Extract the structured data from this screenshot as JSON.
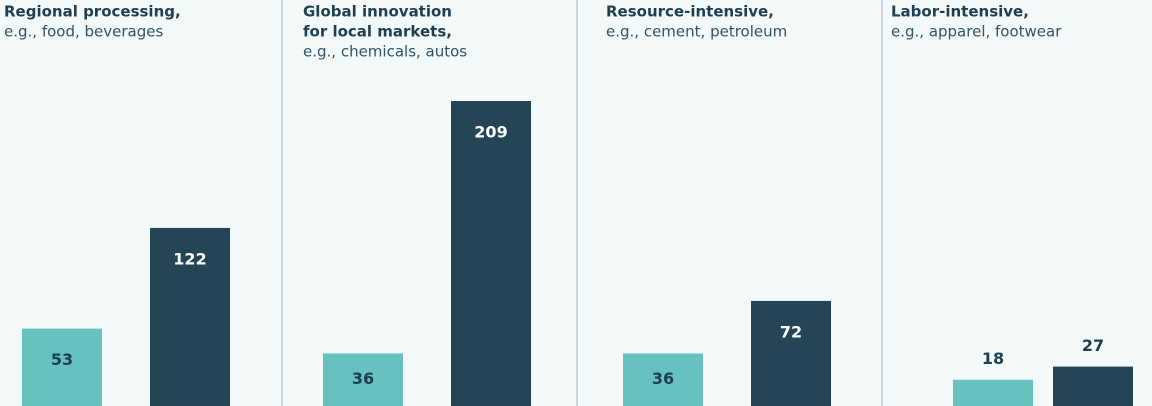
{
  "chart_data": [
    {
      "type": "bar",
      "title": [
        "Regional processing,"
      ],
      "subtitle": "e.g., food, beverages",
      "values": [
        53,
        122
      ],
      "colors": [
        "#66c1bf",
        "#234556"
      ]
    },
    {
      "type": "bar",
      "title": [
        "Global innovation",
        "for local markets,"
      ],
      "subtitle": "e.g., chemicals, autos",
      "values": [
        36,
        209
      ],
      "colors": [
        "#66c1bf",
        "#234556"
      ]
    },
    {
      "type": "bar",
      "title": [
        "Resource-intensive,"
      ],
      "subtitle": "e.g., cement, petroleum",
      "values": [
        36,
        72
      ],
      "colors": [
        "#66c1bf",
        "#234556"
      ]
    },
    {
      "type": "bar",
      "title": [
        "Labor-intensive,"
      ],
      "subtitle": "e.g., apparel, footwear",
      "values": [
        18,
        27
      ],
      "colors": [
        "#66c1bf",
        "#234556"
      ]
    }
  ]
}
